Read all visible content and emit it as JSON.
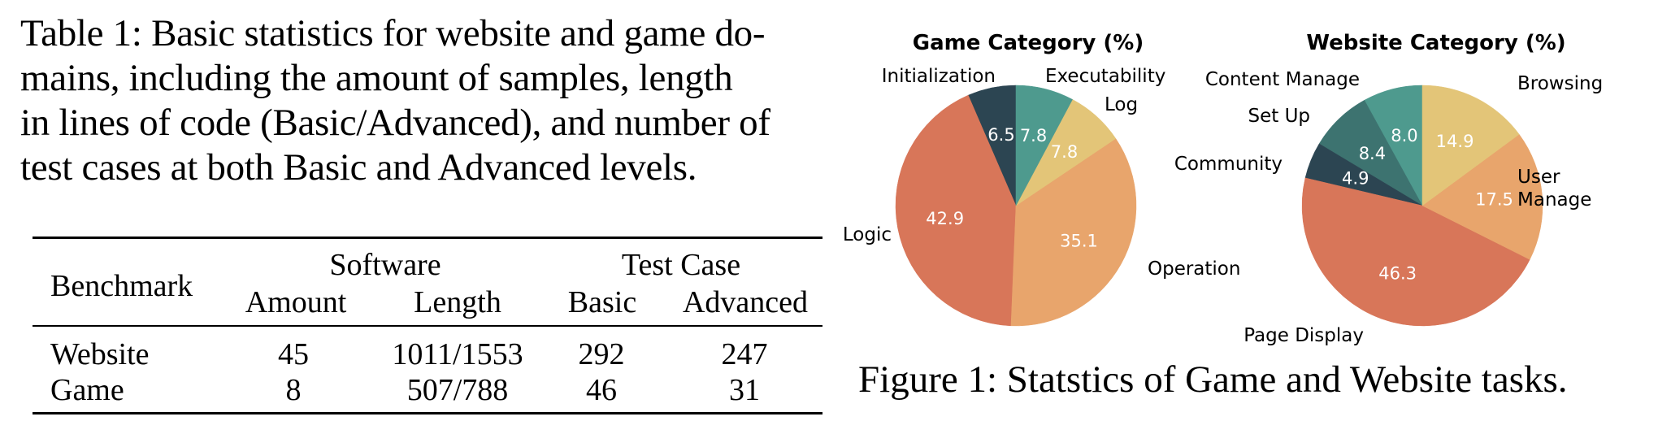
{
  "table_caption": {
    "lines": [
      "Table 1: Basic statistics for website and game do-",
      "mains, including the amount of samples, length",
      "in lines of code (Basic/Advanced), and number of",
      "test cases at both Basic and Advanced levels."
    ]
  },
  "table": {
    "header": {
      "benchmark": "Benchmark",
      "group_software": "Software",
      "group_test_case": "Test Case",
      "amount": "Amount",
      "length": "Length",
      "basic": "Basic",
      "advanced": "Advanced"
    },
    "rows": [
      {
        "benchmark": "Website",
        "amount": "45",
        "length": "1011/1553",
        "basic": "292",
        "advanced": "247"
      },
      {
        "benchmark": "Game",
        "amount": "8",
        "length": "507/788",
        "basic": "46",
        "advanced": "31"
      }
    ]
  },
  "figure_caption": "Figure 1: Statstics of Game and Website tasks.",
  "colors": {
    "dark_slate": "#2c4552",
    "deep_teal": "#3d7370",
    "teal": "#4e9a8e",
    "yellow": "#e3c578",
    "light_orange": "#e8a56c",
    "red_orange": "#d87659"
  },
  "chart_data": [
    {
      "type": "pie",
      "title": "Game Category (%)",
      "start_angle": 90,
      "direction": "counterclockwise",
      "categories": [
        "Initialization",
        "Logic",
        "Operation",
        "Log",
        "Executability"
      ],
      "values": [
        6.5,
        42.9,
        35.1,
        7.8,
        7.8
      ],
      "colors": [
        "#2c4552",
        "#d87659",
        "#e8a56c",
        "#e3c578",
        "#4e9a8e"
      ]
    },
    {
      "type": "pie",
      "title": "Website Category (%)",
      "start_angle": 90,
      "direction": "counterclockwise",
      "categories": [
        "Content Manage",
        "Set Up",
        "Community",
        "Page Display",
        "User Manage",
        "Browsing"
      ],
      "values": [
        8.0,
        8.4,
        4.9,
        46.3,
        17.5,
        14.9
      ],
      "colors": [
        "#4e9a8e",
        "#3d7370",
        "#2c4552",
        "#d87659",
        "#e8a56c",
        "#e3c578"
      ]
    }
  ]
}
